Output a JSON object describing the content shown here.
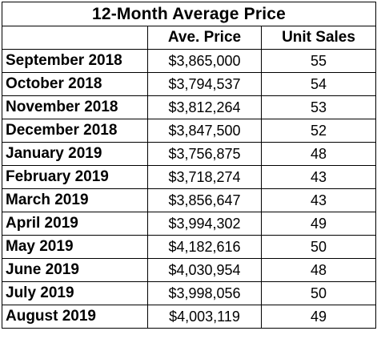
{
  "table": {
    "title": "12-Month Average Price",
    "headers": {
      "month": "",
      "price": "Ave. Price",
      "units": "Unit Sales"
    },
    "rows": [
      {
        "month": "September 2018",
        "price": "$3,865,000",
        "units": "55"
      },
      {
        "month": "October 2018",
        "price": "$3,794,537",
        "units": "54"
      },
      {
        "month": "November 2018",
        "price": "$3,812,264",
        "units": "53"
      },
      {
        "month": "December 2018",
        "price": "$3,847,500",
        "units": "52"
      },
      {
        "month": "January 2019",
        "price": "$3,756,875",
        "units": "48"
      },
      {
        "month": "February 2019",
        "price": "$3,718,274",
        "units": "43"
      },
      {
        "month": "March 2019",
        "price": "$3,856,647",
        "units": "43"
      },
      {
        "month": "April 2019",
        "price": "$3,994,302",
        "units": "49"
      },
      {
        "month": "May 2019",
        "price": "$4,182,616",
        "units": "50"
      },
      {
        "month": "June 2019",
        "price": "$4,030,954",
        "units": "48"
      },
      {
        "month": "July 2019",
        "price": "$3,998,056",
        "units": "50"
      },
      {
        "month": "August 2019",
        "price": "$4,003,119",
        "units": "49"
      }
    ]
  }
}
